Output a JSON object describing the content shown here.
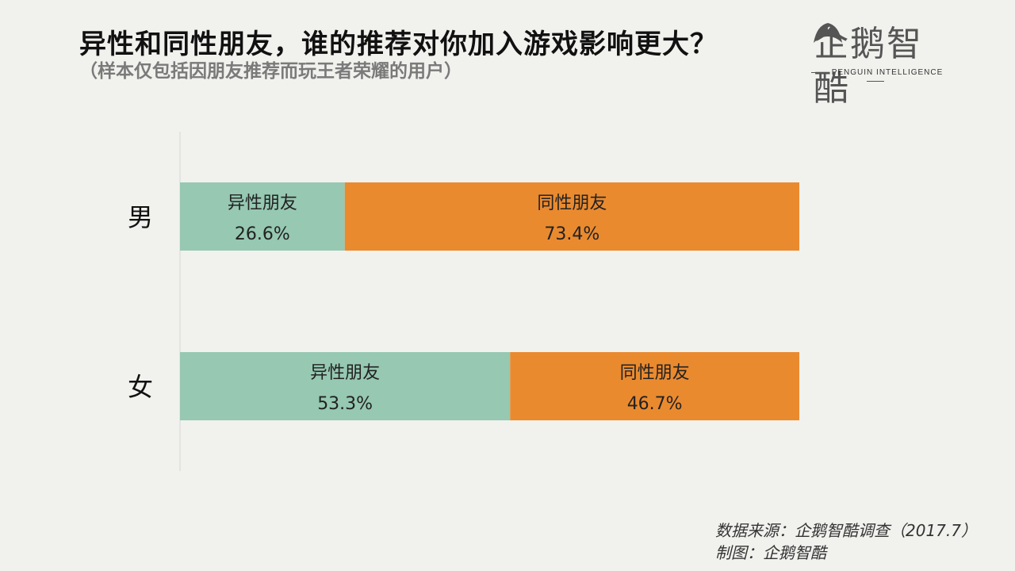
{
  "header": {
    "title": "异性和同性朋友，谁的推荐对你加入游戏影响更大？",
    "subtitle": "（样本仅包括因朋友推荐而玩王者荣耀的用户）"
  },
  "logo": {
    "name": "企鹅智酷",
    "tagline": "PENGUIN INTELLIGENCE"
  },
  "chart_data": {
    "type": "bar",
    "orientation": "horizontal",
    "stacked": true,
    "categories": [
      "男",
      "女"
    ],
    "series": [
      {
        "name": "异性朋友",
        "values": [
          26.6,
          53.3
        ],
        "color": "#96c8b2"
      },
      {
        "name": "同性朋友",
        "values": [
          73.4,
          46.7
        ],
        "color": "#ea8a2f"
      }
    ],
    "value_suffix": "%",
    "xlim": [
      0,
      100
    ],
    "grid": false,
    "legend": "none"
  },
  "footer": {
    "source": "数据来源：企鹅智酷调查（2017.7）",
    "credit": "制图：企鹅智酷"
  }
}
